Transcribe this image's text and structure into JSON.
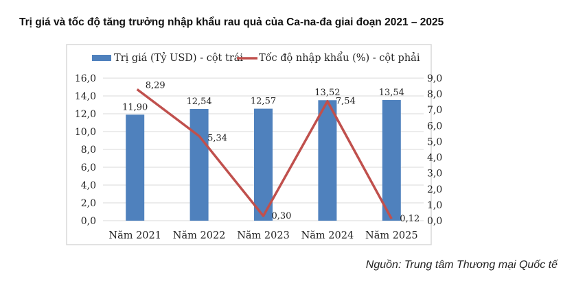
{
  "title": "Trị giá và tốc độ tăng trưởng nhập khẩu rau quả của Ca-na-đa giai đoạn 2021 – 2025",
  "source": "Nguồn: Trung tâm Thương mại Quốc tế",
  "chart_data": {
    "type": "bar+line",
    "categories": [
      "Năm 2021",
      "Năm 2022",
      "Năm 2023",
      "Năm 2024",
      "Năm 2025"
    ],
    "series": [
      {
        "name": "Trị giá (Tỷ USD) - cột trái",
        "type": "bar",
        "axis": "left",
        "color": "#4f81bd",
        "values": [
          11.9,
          12.54,
          12.57,
          13.52,
          13.54
        ],
        "labels": [
          "11,90",
          "12,54",
          "12,57",
          "13,52",
          "13,54"
        ]
      },
      {
        "name": "Tốc độ nhập khẩu (%) - cột phải",
        "type": "line",
        "axis": "right",
        "color": "#c0504d",
        "values": [
          8.29,
          5.34,
          0.3,
          7.54,
          0.12
        ],
        "labels": [
          "8,29",
          "5,34",
          "0,30",
          "7,54",
          "0,12"
        ]
      }
    ],
    "y_left": {
      "min": 0,
      "max": 16,
      "ticks": [
        "0,0",
        "2,0",
        "4,0",
        "6,0",
        "8,0",
        "10,0",
        "12,0",
        "14,0",
        "16,0"
      ]
    },
    "y_right": {
      "min": 0,
      "max": 9,
      "ticks": [
        "0,0",
        "1,0",
        "2,0",
        "3,0",
        "4,0",
        "5,0",
        "6,0",
        "7,0",
        "8,0",
        "9,0"
      ]
    },
    "grid": true,
    "legend": "top"
  }
}
